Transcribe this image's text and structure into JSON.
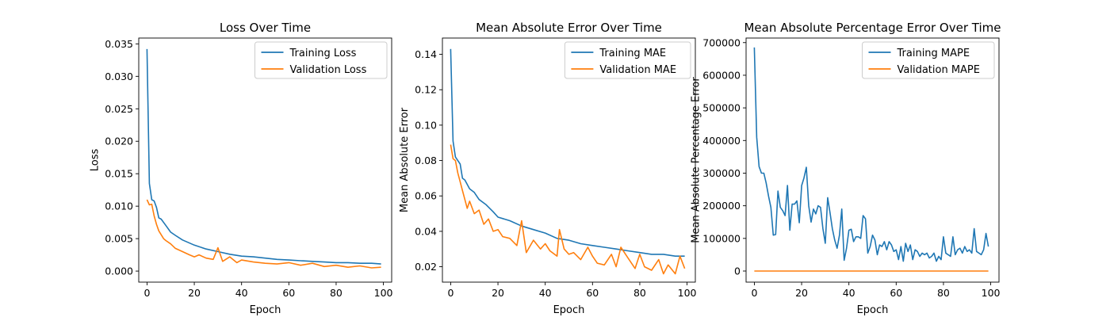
{
  "chart_data": [
    {
      "type": "line",
      "title": "Loss Over Time",
      "xlabel": "Epoch",
      "ylabel": "Loss",
      "xlim": [
        -3.5,
        103.5
      ],
      "ylim": [
        -0.0017,
        0.0359
      ],
      "xticks": [
        0,
        20,
        40,
        60,
        80,
        100
      ],
      "xtick_labels": [
        "0",
        "20",
        "40",
        "60",
        "80",
        "100"
      ],
      "yticks": [
        0,
        0.005,
        0.01,
        0.015,
        0.02,
        0.025,
        0.03,
        0.035
      ],
      "ytick_labels": [
        "0.000",
        "0.005",
        "0.010",
        "0.015",
        "0.020",
        "0.025",
        "0.030",
        "0.035"
      ],
      "legend_position": "top-right",
      "grid": false,
      "series": [
        {
          "name": "Training Loss",
          "color": "#1f77b4",
          "x": [
            0,
            1,
            2,
            3,
            4,
            5,
            6,
            8,
            10,
            12,
            15,
            20,
            25,
            30,
            35,
            40,
            45,
            50,
            55,
            60,
            65,
            70,
            75,
            80,
            85,
            90,
            95,
            99
          ],
          "values": [
            0.0342,
            0.0135,
            0.011,
            0.0108,
            0.0098,
            0.0082,
            0.008,
            0.007,
            0.006,
            0.0055,
            0.0048,
            0.004,
            0.0034,
            0.003,
            0.0026,
            0.0023,
            0.0022,
            0.002,
            0.0018,
            0.0017,
            0.0016,
            0.0015,
            0.0014,
            0.0013,
            0.0013,
            0.0012,
            0.0012,
            0.0011
          ]
        },
        {
          "name": "Validation Loss",
          "color": "#ff7f0e",
          "x": [
            0,
            1,
            2,
            3,
            4,
            5,
            6,
            7,
            8,
            10,
            12,
            15,
            18,
            20,
            22,
            25,
            28,
            30,
            32,
            35,
            38,
            40,
            45,
            50,
            55,
            60,
            65,
            70,
            75,
            80,
            85,
            90,
            95,
            99
          ],
          "values": [
            0.011,
            0.0102,
            0.0103,
            0.0085,
            0.0072,
            0.0062,
            0.0056,
            0.005,
            0.0047,
            0.0042,
            0.0035,
            0.003,
            0.0025,
            0.0022,
            0.0025,
            0.002,
            0.0018,
            0.0036,
            0.0015,
            0.0022,
            0.0013,
            0.0017,
            0.0014,
            0.0012,
            0.0011,
            0.0013,
            0.0009,
            0.0012,
            0.0007,
            0.0009,
            0.0006,
            0.0008,
            0.0005,
            0.0006
          ]
        }
      ]
    },
    {
      "type": "line",
      "title": "Mean Absolute Error Over Time",
      "xlabel": "Epoch",
      "ylabel": "Mean Absolute Error",
      "xlim": [
        -3.5,
        103.5
      ],
      "ylim": [
        0.0113,
        0.1492
      ],
      "xticks": [
        0,
        20,
        40,
        60,
        80,
        100
      ],
      "xtick_labels": [
        "0",
        "20",
        "40",
        "60",
        "80",
        "100"
      ],
      "yticks": [
        0.02,
        0.04,
        0.06,
        0.08,
        0.1,
        0.12,
        0.14
      ],
      "ytick_labels": [
        "0.02",
        "0.04",
        "0.06",
        "0.08",
        "0.10",
        "0.12",
        "0.14"
      ],
      "legend_position": "top-right",
      "grid": false,
      "series": [
        {
          "name": "Training MAE",
          "color": "#1f77b4",
          "x": [
            0,
            1,
            2,
            3,
            4,
            5,
            6,
            8,
            10,
            12,
            15,
            18,
            20,
            25,
            30,
            35,
            40,
            45,
            50,
            55,
            60,
            65,
            70,
            75,
            80,
            85,
            90,
            95,
            99
          ],
          "values": [
            0.143,
            0.091,
            0.082,
            0.08,
            0.078,
            0.07,
            0.069,
            0.064,
            0.062,
            0.058,
            0.055,
            0.051,
            0.048,
            0.046,
            0.043,
            0.041,
            0.039,
            0.036,
            0.035,
            0.033,
            0.032,
            0.031,
            0.03,
            0.029,
            0.028,
            0.027,
            0.027,
            0.026,
            0.026
          ]
        },
        {
          "name": "Validation MAE",
          "color": "#ff7f0e",
          "x": [
            0,
            1,
            2,
            3,
            4,
            5,
            6,
            7,
            8,
            10,
            12,
            14,
            16,
            18,
            20,
            22,
            25,
            28,
            30,
            32,
            35,
            38,
            40,
            42,
            45,
            46,
            48,
            50,
            52,
            55,
            58,
            60,
            62,
            65,
            68,
            70,
            72,
            75,
            78,
            80,
            82,
            85,
            88,
            90,
            92,
            95,
            97,
            99
          ],
          "values": [
            0.089,
            0.081,
            0.08,
            0.073,
            0.068,
            0.063,
            0.058,
            0.053,
            0.057,
            0.05,
            0.052,
            0.044,
            0.047,
            0.04,
            0.041,
            0.037,
            0.036,
            0.032,
            0.046,
            0.028,
            0.035,
            0.03,
            0.033,
            0.029,
            0.026,
            0.041,
            0.03,
            0.027,
            0.028,
            0.024,
            0.031,
            0.026,
            0.022,
            0.021,
            0.027,
            0.02,
            0.031,
            0.025,
            0.019,
            0.027,
            0.02,
            0.018,
            0.024,
            0.016,
            0.021,
            0.016,
            0.026,
            0.019
          ]
        }
      ]
    },
    {
      "type": "line",
      "title": "Mean Absolute Percentage Error Over Time",
      "xlabel": "Epoch",
      "ylabel": "Mean Absolute Percentage Error",
      "xlim": [
        -3.5,
        103.5
      ],
      "ylim": [
        -34000,
        714000
      ],
      "xticks": [
        0,
        20,
        40,
        60,
        80,
        100
      ],
      "xtick_labels": [
        "0",
        "20",
        "40",
        "60",
        "80",
        "100"
      ],
      "yticks": [
        0,
        100000,
        200000,
        300000,
        400000,
        500000,
        600000,
        700000
      ],
      "ytick_labels": [
        "0",
        "100000",
        "200000",
        "300000",
        "400000",
        "500000",
        "600000",
        "700000"
      ],
      "legend_position": "top-right",
      "grid": false,
      "series": [
        {
          "name": "Training MAPE",
          "color": "#1f77b4",
          "x": [
            0,
            1,
            2,
            3,
            4,
            5,
            6,
            7,
            8,
            9,
            10,
            11,
            12,
            13,
            14,
            15,
            16,
            17,
            18,
            19,
            20,
            21,
            22,
            23,
            24,
            25,
            26,
            27,
            28,
            29,
            30,
            31,
            32,
            33,
            34,
            35,
            36,
            37,
            38,
            39,
            40,
            41,
            42,
            43,
            44,
            45,
            46,
            47,
            48,
            49,
            50,
            51,
            52,
            53,
            54,
            55,
            56,
            57,
            58,
            59,
            60,
            61,
            62,
            63,
            64,
            65,
            66,
            67,
            68,
            69,
            70,
            71,
            72,
            73,
            74,
            75,
            76,
            77,
            78,
            79,
            80,
            81,
            82,
            83,
            84,
            85,
            86,
            87,
            88,
            89,
            90,
            91,
            92,
            93,
            94,
            95,
            96,
            97,
            98,
            99
          ],
          "values": [
            685000,
            410000,
            320000,
            300000,
            300000,
            270000,
            230000,
            195000,
            110000,
            112000,
            245000,
            195000,
            185000,
            170000,
            262000,
            125000,
            205000,
            205000,
            215000,
            148000,
            262000,
            285000,
            318000,
            200000,
            150000,
            190000,
            175000,
            200000,
            195000,
            130000,
            85000,
            225000,
            180000,
            130000,
            95000,
            70000,
            110000,
            190000,
            33000,
            70000,
            125000,
            128000,
            90000,
            105000,
            105000,
            100000,
            170000,
            160000,
            55000,
            75000,
            110000,
            95000,
            50000,
            80000,
            75000,
            90000,
            65000,
            90000,
            80000,
            60000,
            65000,
            35000,
            75000,
            30000,
            85000,
            60000,
            80000,
            35000,
            65000,
            60000,
            45000,
            55000,
            50000,
            55000,
            40000,
            45000,
            55000,
            30000,
            45000,
            35000,
            105000,
            55000,
            50000,
            45000,
            105000,
            50000,
            65000,
            70000,
            55000,
            75000,
            60000,
            65000,
            55000,
            130000,
            60000,
            55000,
            50000,
            65000,
            115000,
            75000
          ]
        },
        {
          "name": "Validation MAPE",
          "color": "#ff7f0e",
          "x": [
            0,
            99
          ],
          "values": [
            0,
            0
          ]
        }
      ]
    }
  ]
}
